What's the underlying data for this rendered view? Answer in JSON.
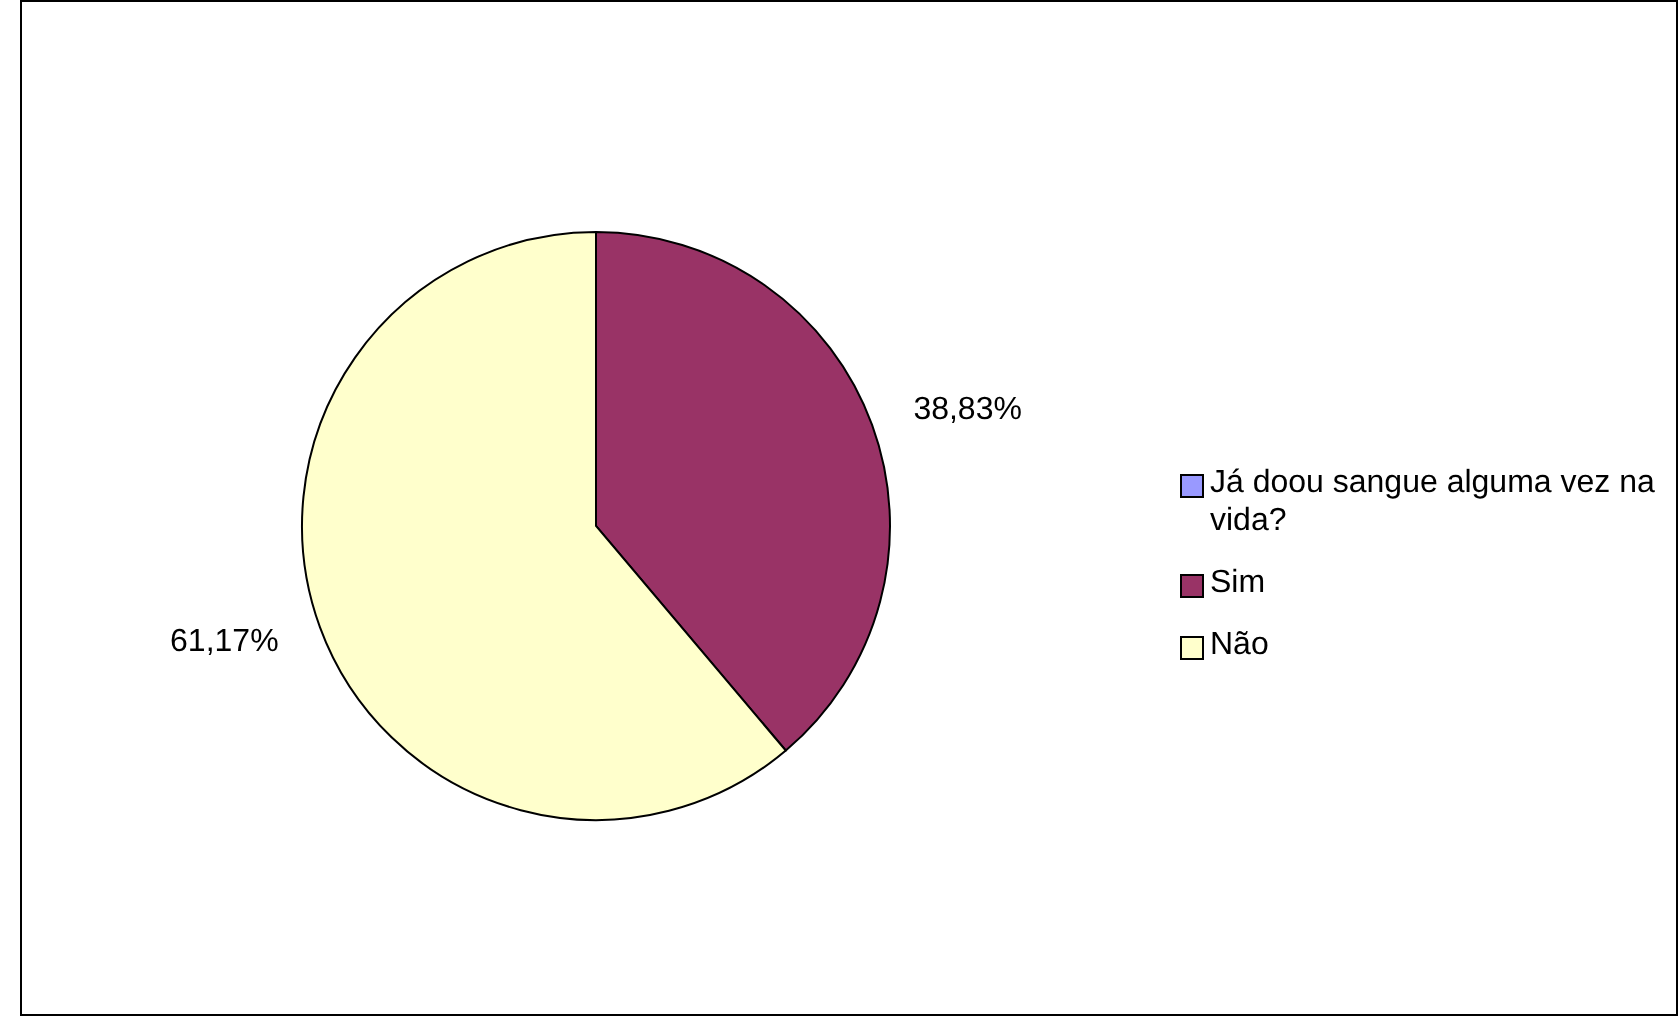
{
  "chart_data": {
    "type": "pie",
    "categories": [
      "Já doou sangue alguma vez na vida?",
      "Sim",
      "Não"
    ],
    "values": [
      0,
      38.83,
      61.17
    ],
    "colors": [
      "#9999ff",
      "#993366",
      "#ffffcc"
    ],
    "value_labels": [
      null,
      "38,83%",
      "61,17%"
    ],
    "legend": "right"
  }
}
